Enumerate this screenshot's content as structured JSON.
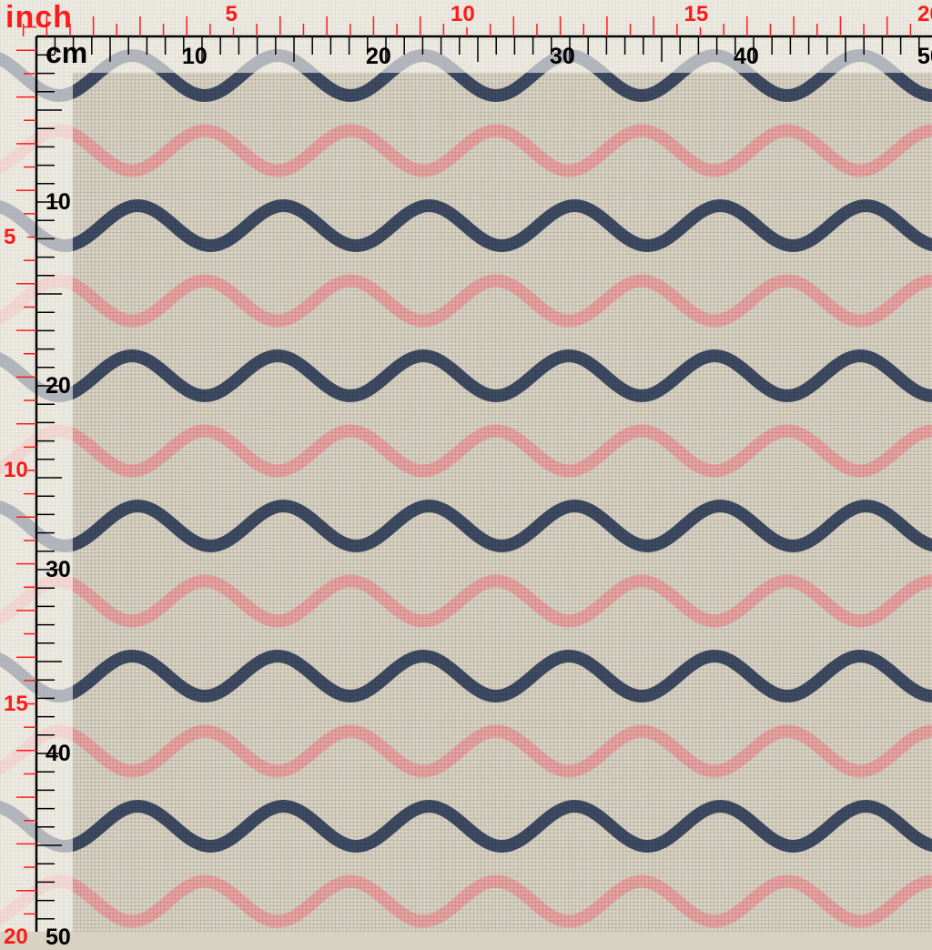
{
  "rulers": {
    "inch_label": "inch",
    "cm_label": "cm",
    "inch_marks": [
      "5",
      "10",
      "15",
      "20"
    ],
    "cm_marks": [
      "10",
      "20",
      "30",
      "40",
      "50"
    ],
    "inch_color": "#ff1a1a",
    "cm_color": "#000000"
  },
  "fabric": {
    "pattern": "horizontal wavy stripes on linen texture",
    "background_color": "#d8d2c3",
    "stripe_colors": [
      "#3e4b63",
      "#e9a3a1"
    ]
  }
}
